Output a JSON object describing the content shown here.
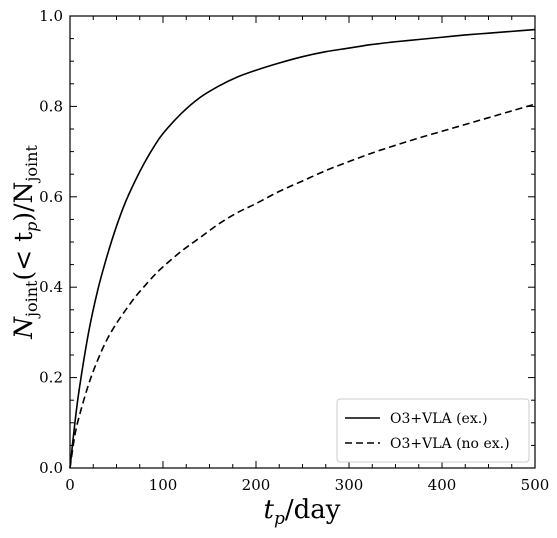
{
  "chart_data": {
    "type": "line",
    "xlabel": {
      "main": "t",
      "sub": "p",
      "suffix": "/day"
    },
    "ylabel": {
      "n1": "N",
      "s1": "joint",
      "mid": "(< t",
      "s2": "p",
      "close": ")/N",
      "s3": "joint"
    },
    "xlim": [
      0,
      500
    ],
    "ylim": [
      0,
      1.0
    ],
    "xticks": [
      0,
      100,
      200,
      300,
      400,
      500
    ],
    "xtick_labels": [
      "0",
      "100",
      "200",
      "300",
      "400",
      "500"
    ],
    "yticks": [
      0.0,
      0.2,
      0.4,
      0.6,
      0.8,
      1.0
    ],
    "ytick_labels": [
      "0.0",
      "0.2",
      "0.4",
      "0.6",
      "0.8",
      "1.0"
    ],
    "grid": false,
    "legend_position": "bottom-right",
    "series": [
      {
        "name": "O3+VLA (ex.)",
        "style": "solid",
        "color": "#000000",
        "x": [
          0,
          5,
          10,
          20,
          30,
          40,
          50,
          60,
          70,
          80,
          90,
          100,
          120,
          140,
          160,
          180,
          200,
          225,
          250,
          275,
          300,
          325,
          350,
          375,
          400,
          425,
          450,
          475,
          500
        ],
        "y": [
          0.0,
          0.095,
          0.175,
          0.3,
          0.395,
          0.47,
          0.535,
          0.59,
          0.635,
          0.675,
          0.71,
          0.74,
          0.785,
          0.82,
          0.845,
          0.865,
          0.88,
          0.896,
          0.91,
          0.921,
          0.929,
          0.937,
          0.943,
          0.948,
          0.953,
          0.958,
          0.962,
          0.966,
          0.97
        ]
      },
      {
        "name": "O3+VLA (no ex.)",
        "style": "dashed",
        "color": "#000000",
        "x": [
          0,
          5,
          10,
          20,
          30,
          40,
          50,
          60,
          70,
          80,
          90,
          100,
          120,
          140,
          160,
          180,
          200,
          225,
          250,
          275,
          300,
          325,
          350,
          375,
          400,
          425,
          450,
          475,
          500
        ],
        "y": [
          0.0,
          0.07,
          0.115,
          0.185,
          0.24,
          0.285,
          0.32,
          0.35,
          0.378,
          0.402,
          0.425,
          0.445,
          0.48,
          0.51,
          0.54,
          0.565,
          0.585,
          0.612,
          0.635,
          0.658,
          0.678,
          0.697,
          0.714,
          0.73,
          0.745,
          0.76,
          0.775,
          0.79,
          0.805
        ]
      }
    ]
  }
}
